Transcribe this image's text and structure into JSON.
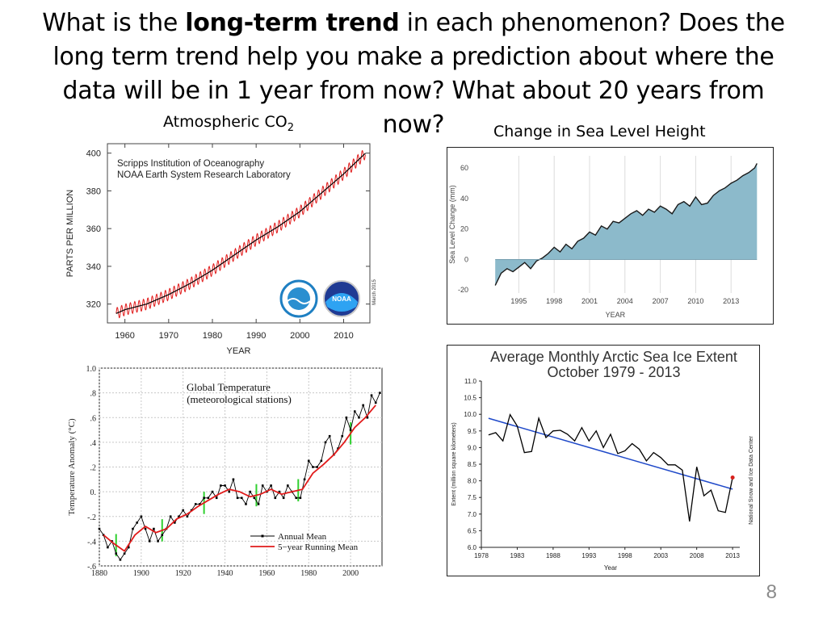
{
  "slide": {
    "question_part1": "What is the ",
    "question_bold": "long-term trend",
    "question_part2": " in each phenomenon? Does the long term trend help you make a prediction about where the data will be in 1 year from now? What about 20 years from now?",
    "page_number": "8"
  },
  "chart_data": [
    {
      "id": "co2",
      "type": "line",
      "title_main": "Atmospheric CO",
      "title_sub": "2",
      "annotation_lines": [
        "Scripps Institution of Oceanography",
        "NOAA Earth System Research Laboratory"
      ],
      "side_note": "March 2015",
      "xlabel": "YEAR",
      "ylabel": "PARTS PER MILLION",
      "xlim": [
        1956,
        2016
      ],
      "ylim": [
        310,
        405
      ],
      "xticks": [
        1960,
        1970,
        1980,
        1990,
        2000,
        2010
      ],
      "yticks": [
        320,
        340,
        360,
        380,
        400
      ],
      "trend_x": [
        1958,
        1960,
        1965,
        1970,
        1975,
        1980,
        1985,
        1990,
        1995,
        2000,
        2005,
        2010,
        2015
      ],
      "trend_y": [
        315,
        317,
        320,
        325,
        331,
        338,
        346,
        354,
        361,
        369,
        379,
        389,
        400
      ],
      "seasonal_amplitude": 3,
      "colors": {
        "trend": "#000000",
        "seasonal": "#e11b1b"
      },
      "logos": {
        "left": "scripps-logo",
        "right": "noaa-logo",
        "right_text": "NOAA"
      }
    },
    {
      "id": "sea_level",
      "type": "area",
      "title": "Change in Sea Level Height",
      "xlabel": "YEAR",
      "ylabel": "Sea Level Change (mm)",
      "xlim": [
        1991,
        2016
      ],
      "ylim": [
        -22,
        68
      ],
      "xticks": [
        1995,
        1998,
        2001,
        2004,
        2007,
        2010,
        2013
      ],
      "yticks": [
        -20,
        0,
        20,
        40,
        60
      ],
      "x": [
        1993.0,
        1993.5,
        1994.0,
        1994.5,
        1995.0,
        1995.5,
        1996.0,
        1996.5,
        1997.0,
        1997.5,
        1998.0,
        1998.5,
        1999.0,
        1999.5,
        2000.0,
        2000.5,
        2001.0,
        2001.5,
        2002.0,
        2002.5,
        2003.0,
        2003.5,
        2004.0,
        2004.5,
        2005.0,
        2005.5,
        2006.0,
        2006.5,
        2007.0,
        2007.5,
        2008.0,
        2008.5,
        2009.0,
        2009.5,
        2010.0,
        2010.5,
        2011.0,
        2011.5,
        2012.0,
        2012.5,
        2013.0,
        2013.5,
        2014.0,
        2014.5,
        2015.0,
        2015.2
      ],
      "y": [
        -17,
        -9,
        -6,
        -8,
        -5,
        -2,
        -6,
        -1,
        1,
        4,
        8,
        5,
        10,
        7,
        12,
        14,
        18,
        16,
        22,
        20,
        25,
        24,
        27,
        30,
        32,
        29,
        33,
        31,
        35,
        33,
        30,
        36,
        38,
        35,
        41,
        36,
        37,
        42,
        45,
        47,
        50,
        52,
        55,
        57,
        60,
        63
      ],
      "colors": {
        "fill": "#8cbacb",
        "line": "#1a1a1a"
      }
    },
    {
      "id": "global_temp",
      "type": "line",
      "title_lines": [
        "Global Temperature",
        "(meteorological stations)"
      ],
      "ylabel": "Temperature Anomaly (°C)",
      "xlim": [
        1880,
        2015
      ],
      "ylim": [
        -0.6,
        1.0
      ],
      "xticks": [
        1880,
        1900,
        1920,
        1940,
        1960,
        1980,
        2000
      ],
      "yticks": [
        -0.6,
        -0.4,
        -0.2,
        0,
        0.2,
        0.4,
        0.6,
        0.8,
        1.0
      ],
      "ytick_labels": [
        "-.6",
        "-.4",
        "-.2",
        "0.",
        ".2",
        ".4",
        ".6",
        ".8",
        "1.0"
      ],
      "legend": [
        "Annual Mean",
        "5−year Running Mean"
      ],
      "annual_x": [
        1880,
        1882,
        1884,
        1886,
        1888,
        1890,
        1892,
        1894,
        1896,
        1898,
        1900,
        1902,
        1904,
        1906,
        1908,
        1910,
        1912,
        1914,
        1916,
        1918,
        1920,
        1922,
        1924,
        1926,
        1928,
        1930,
        1932,
        1934,
        1936,
        1938,
        1940,
        1942,
        1944,
        1946,
        1948,
        1950,
        1952,
        1954,
        1956,
        1958,
        1960,
        1962,
        1964,
        1966,
        1968,
        1970,
        1972,
        1974,
        1976,
        1978,
        1980,
        1982,
        1984,
        1986,
        1988,
        1990,
        1992,
        1994,
        1996,
        1998,
        2000,
        2002,
        2004,
        2006,
        2008,
        2010,
        2012,
        2014
      ],
      "annual_y": [
        -0.3,
        -0.35,
        -0.45,
        -0.4,
        -0.5,
        -0.55,
        -0.5,
        -0.45,
        -0.3,
        -0.25,
        -0.2,
        -0.3,
        -0.4,
        -0.3,
        -0.4,
        -0.35,
        -0.3,
        -0.2,
        -0.25,
        -0.2,
        -0.15,
        -0.2,
        -0.15,
        -0.1,
        -0.1,
        -0.05,
        -0.05,
        0.0,
        -0.05,
        0.05,
        0.05,
        0.0,
        0.1,
        -0.05,
        -0.05,
        -0.1,
        0.0,
        -0.05,
        -0.1,
        0.05,
        0.0,
        0.05,
        -0.05,
        0.0,
        -0.05,
        0.05,
        0.0,
        -0.05,
        -0.05,
        0.1,
        0.25,
        0.2,
        0.2,
        0.25,
        0.4,
        0.45,
        0.3,
        0.35,
        0.45,
        0.6,
        0.5,
        0.65,
        0.6,
        0.7,
        0.6,
        0.78,
        0.72,
        0.8
      ],
      "running_x": [
        1882,
        1887,
        1892,
        1897,
        1902,
        1907,
        1912,
        1917,
        1922,
        1927,
        1932,
        1937,
        1942,
        1947,
        1952,
        1957,
        1962,
        1967,
        1972,
        1977,
        1982,
        1987,
        1992,
        1997,
        2002,
        2007,
        2012
      ],
      "running_y": [
        -0.35,
        -0.42,
        -0.48,
        -0.35,
        -0.28,
        -0.33,
        -0.3,
        -0.22,
        -0.18,
        -0.12,
        -0.07,
        -0.02,
        0.02,
        0.0,
        -0.04,
        -0.02,
        0.02,
        -0.02,
        0.0,
        0.02,
        0.15,
        0.22,
        0.3,
        0.4,
        0.52,
        0.6,
        0.7
      ],
      "colors": {
        "annual": "#000000",
        "running": "#e11b1b",
        "uncertainty": "#2fd02f"
      }
    },
    {
      "id": "sea_ice",
      "type": "line",
      "title_lines": [
        "Average Monthly Arctic Sea Ice Extent",
        "October 1979 - 2013"
      ],
      "xlabel": "Year",
      "ylabel": "Extent (million square kilometers)",
      "side_note": "National Snow and Ice Data Center",
      "xlim": [
        1978,
        2014
      ],
      "ylim": [
        6.0,
        11.0
      ],
      "xticks": [
        1978,
        1983,
        1988,
        1993,
        1998,
        2003,
        2008,
        2013
      ],
      "yticks": [
        6.0,
        6.5,
        7.0,
        7.5,
        8.0,
        8.5,
        9.0,
        9.5,
        10.0,
        10.5,
        11.0
      ],
      "x": [
        1979,
        1980,
        1981,
        1982,
        1983,
        1984,
        1985,
        1986,
        1987,
        1988,
        1989,
        1990,
        1991,
        1992,
        1993,
        1994,
        1995,
        1996,
        1997,
        1998,
        1999,
        2000,
        2001,
        2002,
        2003,
        2004,
        2005,
        2006,
        2007,
        2008,
        2009,
        2010,
        2011,
        2012,
        2013
      ],
      "y": [
        9.38,
        9.45,
        9.2,
        9.99,
        9.65,
        8.85,
        8.88,
        9.88,
        9.3,
        9.5,
        9.52,
        9.4,
        9.2,
        9.6,
        9.2,
        9.5,
        9.0,
        9.4,
        8.82,
        8.9,
        9.12,
        8.95,
        8.6,
        8.85,
        8.7,
        8.48,
        8.48,
        8.32,
        6.78,
        8.42,
        7.55,
        7.72,
        7.1,
        7.05,
        8.1
      ],
      "trend": [
        [
          1979,
          9.88
        ],
        [
          2013,
          7.75
        ]
      ],
      "colors": {
        "data": "#000000",
        "trend": "#1f49c9",
        "last_point": "#d8201c"
      }
    }
  ]
}
